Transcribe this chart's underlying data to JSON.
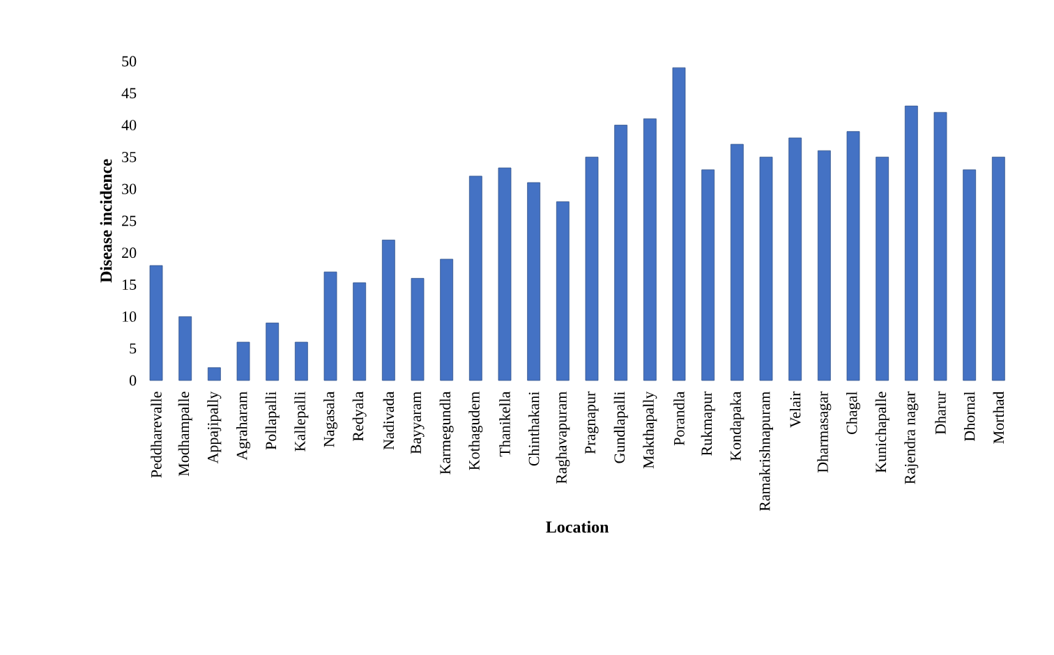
{
  "chart_data": {
    "type": "bar",
    "xlabel": "Location",
    "ylabel": "Disease incidence",
    "categories": [
      "Peddharevalle",
      "Modhampalle",
      "Appajipally",
      "Agraharam",
      "Pollapalli",
      "Kallepalli",
      "Nagasala",
      "Redyala",
      "Nadivada",
      "Bayyaram",
      "Karmegundla",
      "Kothagudem",
      "Thanikella",
      "Chinthakani",
      "Raghavapuram",
      "Pragnapur",
      "Gundlapalli",
      "Makthapally",
      "Porandla",
      "Rukmapur",
      "Kondapaka",
      "Ramakrishnapuram",
      "Velair",
      "Dharmasagar",
      "Chagal",
      "Kunichapalle",
      "Rajendra nagar",
      "Dharur",
      "Dhornal",
      "Morthad"
    ],
    "values": [
      18,
      10,
      2,
      6,
      9,
      6,
      17,
      15.3,
      22,
      16,
      19,
      32,
      33.3,
      31,
      28,
      35,
      40,
      41,
      49,
      33,
      37,
      35,
      38,
      36,
      39,
      35,
      43,
      42,
      33,
      35
    ],
    "color": "#4472c4",
    "ylim": [
      0,
      50
    ],
    "yticks": [
      0,
      5,
      10,
      15,
      20,
      25,
      30,
      35,
      40,
      45,
      50
    ],
    "grid": false
  }
}
